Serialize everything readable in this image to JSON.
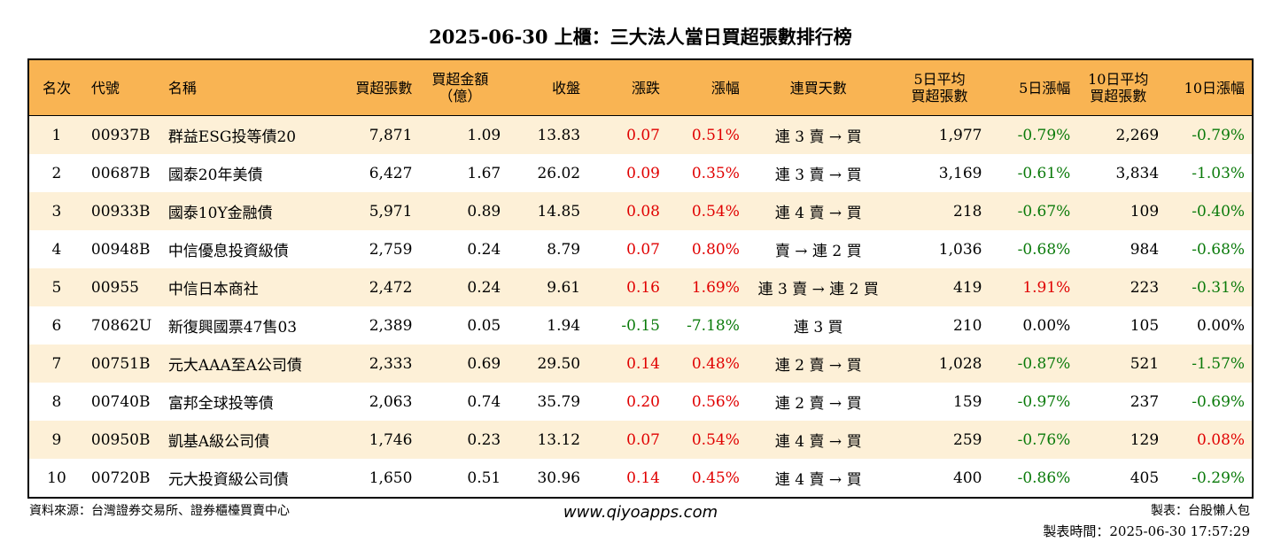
{
  "title": "2025-06-30 上櫃：三大法人當日買超張數排行榜",
  "colors": {
    "header_bg": "#f9b453",
    "odd_row_bg": "#fdf0d7",
    "up": "#e00000",
    "down": "#0a7a0a"
  },
  "headers": {
    "rank": "名次",
    "code": "代號",
    "name": "名稱",
    "buy_lots": "買超張數",
    "buy_amount_l1": "買超金額",
    "buy_amount_l2": "（億）",
    "close": "收盤",
    "change": "漲跌",
    "change_pct": "漲幅",
    "streak": "連買天數",
    "avg5_l1": "5日平均",
    "avg5_l2": "買超張數",
    "pct5": "5日漲幅",
    "avg10_l1": "10日平均",
    "avg10_l2": "買超張數",
    "pct10": "10日漲幅"
  },
  "rows": [
    {
      "rank": "1",
      "code": "00937B",
      "name": "群益ESG投等債20",
      "buy_lots": "7,871",
      "amount": "1.09",
      "close": "13.83",
      "change": "0.07",
      "change_pct": "0.51%",
      "streak": "連 3 賣 → 買",
      "avg5": "1,977",
      "pct5": "-0.79%",
      "avg10": "2,269",
      "pct10": "-0.79%",
      "change_color": "red",
      "pct5_color": "green",
      "pct10_color": "green"
    },
    {
      "rank": "2",
      "code": "00687B",
      "name": "國泰20年美債",
      "buy_lots": "6,427",
      "amount": "1.67",
      "close": "26.02",
      "change": "0.09",
      "change_pct": "0.35%",
      "streak": "連 3 賣 → 買",
      "avg5": "3,169",
      "pct5": "-0.61%",
      "avg10": "3,834",
      "pct10": "-1.03%",
      "change_color": "red",
      "pct5_color": "green",
      "pct10_color": "green"
    },
    {
      "rank": "3",
      "code": "00933B",
      "name": "國泰10Y金融債",
      "buy_lots": "5,971",
      "amount": "0.89",
      "close": "14.85",
      "change": "0.08",
      "change_pct": "0.54%",
      "streak": "連 4 賣 → 買",
      "avg5": "218",
      "pct5": "-0.67%",
      "avg10": "109",
      "pct10": "-0.40%",
      "change_color": "red",
      "pct5_color": "green",
      "pct10_color": "green"
    },
    {
      "rank": "4",
      "code": "00948B",
      "name": "中信優息投資級債",
      "buy_lots": "2,759",
      "amount": "0.24",
      "close": "8.79",
      "change": "0.07",
      "change_pct": "0.80%",
      "streak": "賣 → 連 2 買",
      "avg5": "1,036",
      "pct5": "-0.68%",
      "avg10": "984",
      "pct10": "-0.68%",
      "change_color": "red",
      "pct5_color": "green",
      "pct10_color": "green"
    },
    {
      "rank": "5",
      "code": "00955",
      "name": "中信日本商社",
      "buy_lots": "2,472",
      "amount": "0.24",
      "close": "9.61",
      "change": "0.16",
      "change_pct": "1.69%",
      "streak": "連 3 賣 → 連 2 買",
      "avg5": "419",
      "pct5": "1.91%",
      "avg10": "223",
      "pct10": "-0.31%",
      "change_color": "red",
      "pct5_color": "red",
      "pct10_color": "green"
    },
    {
      "rank": "6",
      "code": "70862U",
      "name": "新復興國票47售03",
      "buy_lots": "2,389",
      "amount": "0.05",
      "close": "1.94",
      "change": "-0.15",
      "change_pct": "-7.18%",
      "streak": "連 3 買",
      "avg5": "210",
      "pct5": "0.00%",
      "avg10": "105",
      "pct10": "0.00%",
      "change_color": "green",
      "pct5_color": "black",
      "pct10_color": "black"
    },
    {
      "rank": "7",
      "code": "00751B",
      "name": "元大AAA至A公司債",
      "buy_lots": "2,333",
      "amount": "0.69",
      "close": "29.50",
      "change": "0.14",
      "change_pct": "0.48%",
      "streak": "連 2 賣 → 買",
      "avg5": "1,028",
      "pct5": "-0.87%",
      "avg10": "521",
      "pct10": "-1.57%",
      "change_color": "red",
      "pct5_color": "green",
      "pct10_color": "green"
    },
    {
      "rank": "8",
      "code": "00740B",
      "name": "富邦全球投等債",
      "buy_lots": "2,063",
      "amount": "0.74",
      "close": "35.79",
      "change": "0.20",
      "change_pct": "0.56%",
      "streak": "連 2 賣 → 買",
      "avg5": "159",
      "pct5": "-0.97%",
      "avg10": "237",
      "pct10": "-0.69%",
      "change_color": "red",
      "pct5_color": "green",
      "pct10_color": "green"
    },
    {
      "rank": "9",
      "code": "00950B",
      "name": "凱基A級公司債",
      "buy_lots": "1,746",
      "amount": "0.23",
      "close": "13.12",
      "change": "0.07",
      "change_pct": "0.54%",
      "streak": "連 4 賣 → 買",
      "avg5": "259",
      "pct5": "-0.76%",
      "avg10": "129",
      "pct10": "0.08%",
      "change_color": "red",
      "pct5_color": "green",
      "pct10_color": "red"
    },
    {
      "rank": "10",
      "code": "00720B",
      "name": "元大投資級公司債",
      "buy_lots": "1,650",
      "amount": "0.51",
      "close": "30.96",
      "change": "0.14",
      "change_pct": "0.45%",
      "streak": "連 4 賣 → 買",
      "avg5": "400",
      "pct5": "-0.86%",
      "avg10": "405",
      "pct10": "-0.29%",
      "change_color": "red",
      "pct5_color": "green",
      "pct10_color": "green"
    }
  ],
  "footer": {
    "source": "資料來源：台灣證券交易所、證券櫃檯買賣中心",
    "website": "www.qiyoapps.com",
    "maker": "製表：台股懶人包",
    "made_time": "製表時間：2025-06-30 17:57:29"
  }
}
